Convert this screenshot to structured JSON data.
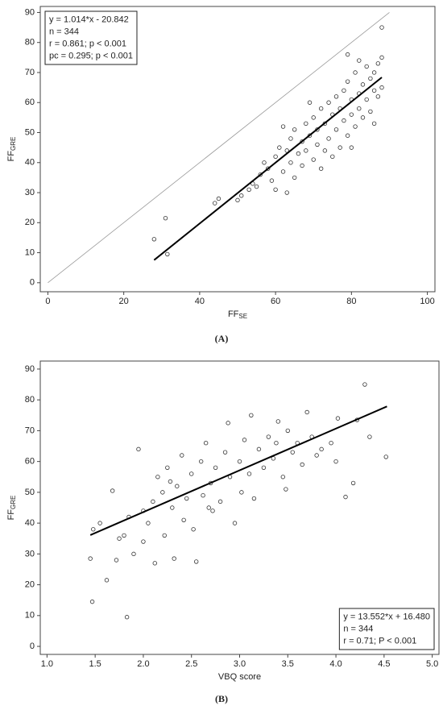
{
  "chart_data": [
    {
      "type": "scatter",
      "caption": "(A)",
      "xlabel": "FF",
      "xlabel_sub": "SE",
      "ylabel": "FF",
      "ylabel_sub": "GRE",
      "xlim": [
        -2,
        102
      ],
      "ylim": [
        -3,
        92
      ],
      "xticks": [
        0,
        20,
        40,
        60,
        80,
        100
      ],
      "yticks": [
        0,
        10,
        20,
        30,
        40,
        50,
        60,
        70,
        80,
        90
      ],
      "annotation": [
        "y = 1.014*x - 20.842",
        "n = 344",
        "r = 0.861; p < 0.001",
        "pc = 0.295; p < 0.001"
      ],
      "annotation_corner": "upper left",
      "color": "#333333",
      "x": [
        28,
        31,
        31.5,
        44,
        45,
        50,
        51,
        53,
        54,
        55,
        56,
        57,
        58,
        59,
        60,
        60,
        61,
        62,
        63,
        63,
        64,
        64,
        65,
        65,
        66,
        67,
        67,
        68,
        68,
        69,
        70,
        70,
        71,
        71,
        72,
        72,
        73,
        73,
        74,
        74,
        75,
        75,
        76,
        76,
        77,
        77,
        78,
        78,
        79,
        79,
        80,
        80,
        81,
        81,
        82,
        82,
        83,
        83,
        84,
        84,
        85,
        85,
        86,
        86,
        87,
        87,
        88,
        88,
        88,
        79,
        82,
        80,
        86,
        62,
        69
      ],
      "y": [
        14.5,
        21.5,
        9.5,
        26.5,
        28,
        27.5,
        29,
        31,
        33,
        32,
        36,
        40,
        38,
        34,
        42,
        31,
        45,
        37,
        30,
        44,
        48,
        40,
        35,
        51,
        43,
        47,
        39,
        53,
        44,
        49,
        41,
        55,
        46,
        51,
        58,
        38,
        53,
        44,
        60,
        48,
        56,
        42,
        62,
        51,
        58,
        45,
        64,
        54,
        67,
        49,
        61,
        56,
        70,
        52,
        63,
        58,
        66,
        55,
        72,
        61,
        68,
        57,
        64,
        70,
        62,
        73,
        85,
        75,
        65,
        76,
        74,
        45,
        53,
        52,
        60
      ],
      "fit_line": {
        "x": [
          28,
          88
        ],
        "y": [
          7.55,
          68.39
        ]
      },
      "reference_line": {
        "x": [
          0,
          90
        ],
        "y": [
          0,
          90
        ],
        "color": "#999999"
      }
    },
    {
      "type": "scatter",
      "caption": "(B)",
      "xlabel": "VBQ score",
      "ylabel": "FF",
      "ylabel_sub": "GRE",
      "xlim": [
        0.93,
        5.07
      ],
      "ylim": [
        -2.6,
        92.6
      ],
      "xticks": [
        {
          "value": 1,
          "label": "1.0"
        },
        1.5,
        {
          "value": 2,
          "label": "2.0"
        },
        2.5,
        {
          "value": 3,
          "label": "3.0"
        },
        3.5,
        {
          "value": 4,
          "label": "4.0"
        },
        4.5,
        {
          "value": 5,
          "label": "5.0"
        }
      ],
      "yticks": [
        0,
        10,
        20,
        30,
        40,
        50,
        60,
        70,
        80,
        90
      ],
      "annotation": [
        "y = 13.552*x + 16.480",
        "n = 344",
        "r = 0.71; P < 0.001"
      ],
      "annotation_corner": "lower right",
      "color": "#333333",
      "x": [
        1.45,
        1.47,
        1.48,
        1.55,
        1.62,
        1.68,
        1.72,
        1.75,
        1.8,
        1.83,
        1.85,
        1.9,
        1.95,
        2.0,
        2.05,
        2.1,
        2.12,
        2.15,
        2.2,
        2.22,
        2.25,
        2.3,
        2.32,
        2.35,
        2.4,
        2.42,
        2.45,
        2.5,
        2.52,
        2.55,
        2.6,
        2.62,
        2.65,
        2.7,
        2.72,
        2.75,
        2.8,
        2.85,
        2.88,
        2.9,
        2.95,
        3.0,
        3.02,
        3.05,
        3.1,
        3.12,
        3.15,
        3.2,
        3.25,
        3.3,
        3.35,
        3.4,
        3.45,
        3.48,
        3.5,
        3.55,
        3.6,
        3.65,
        3.7,
        3.75,
        3.8,
        3.85,
        3.95,
        4.0,
        4.02,
        4.1,
        4.18,
        4.22,
        4.3,
        4.35,
        4.52,
        2.0,
        2.28,
        2.68,
        3.38
      ],
      "y": [
        28.5,
        14.5,
        38,
        40,
        21.5,
        50.5,
        28,
        35,
        36,
        9.5,
        42,
        30,
        64,
        44,
        40,
        47,
        27,
        55,
        50,
        36,
        58,
        45,
        28.5,
        52,
        62,
        41,
        48,
        56,
        38,
        27.5,
        60,
        49,
        66,
        53,
        44,
        58,
        47,
        63,
        72.5,
        55,
        40,
        60,
        50,
        67,
        56,
        75,
        48,
        64,
        58,
        68,
        61,
        73,
        55,
        51,
        70,
        63,
        66,
        59,
        76,
        68,
        62,
        64,
        66,
        60,
        74,
        48.5,
        53,
        73.5,
        85,
        68,
        61.5,
        34,
        53.5,
        45,
        66
      ],
      "fit_line": {
        "x": [
          1.45,
          4.53
        ],
        "y": [
          36.13,
          77.87
        ]
      }
    }
  ]
}
